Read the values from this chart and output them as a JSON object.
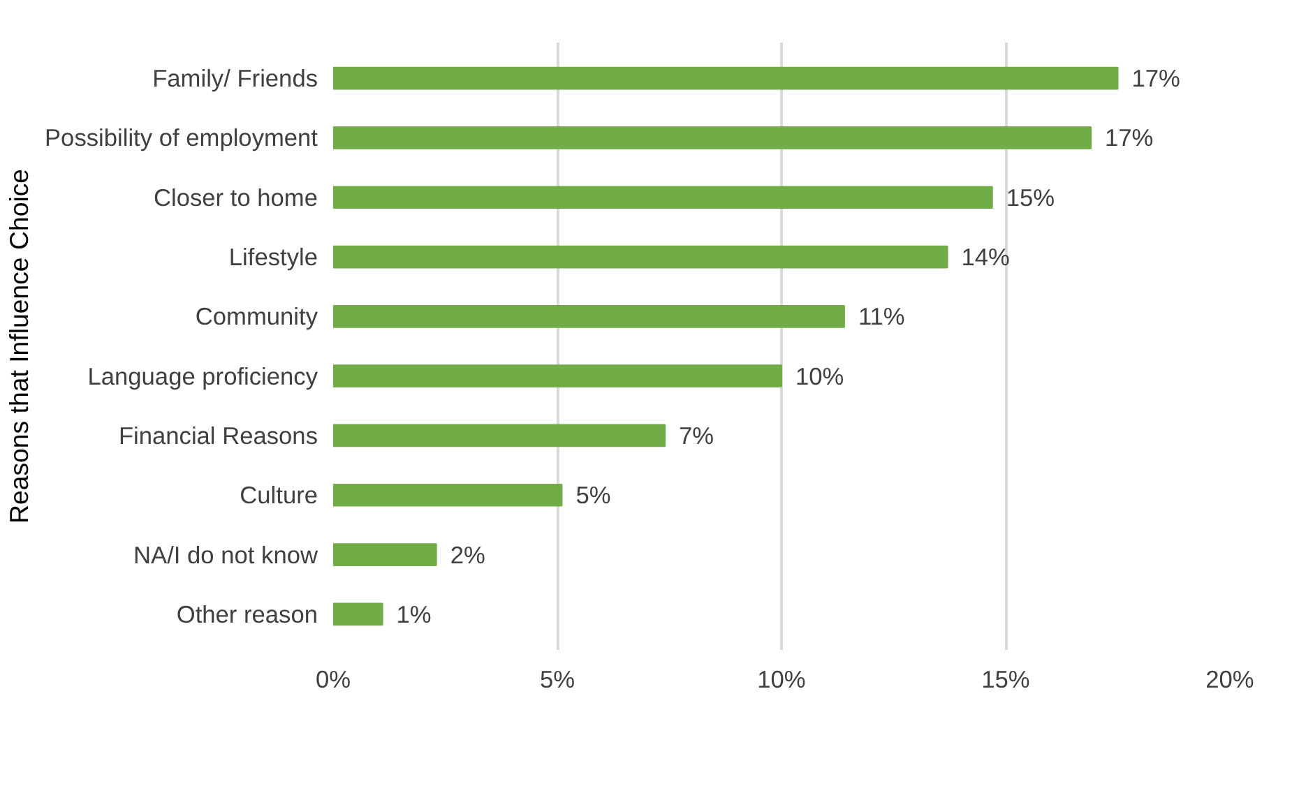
{
  "chart_data": {
    "type": "bar",
    "orientation": "horizontal",
    "ylabel": "Reasons that Influence Choice",
    "categories": [
      "Family/ Friends",
      "Possibility of employment",
      "Closer to home",
      "Lifestyle",
      "Community",
      "Language proficiency",
      "Financial Reasons",
      "Culture",
      "NA/I do not know",
      "Other reason"
    ],
    "values": [
      17.5,
      16.9,
      14.7,
      13.7,
      11.4,
      10.0,
      7.4,
      5.1,
      2.3,
      1.1
    ],
    "value_labels": [
      "17%",
      "17%",
      "15%",
      "14%",
      "11%",
      "10%",
      "7%",
      "5%",
      "2%",
      "1%"
    ],
    "color": "#70ad47",
    "xlim": [
      0,
      20
    ],
    "xticks": [
      {
        "value": 0,
        "label": "0%"
      },
      {
        "value": 5,
        "label": "5%"
      },
      {
        "value": 10,
        "label": "10%"
      },
      {
        "value": 15,
        "label": "15%"
      },
      {
        "value": 20,
        "label": "20%"
      }
    ],
    "grid": "x"
  }
}
